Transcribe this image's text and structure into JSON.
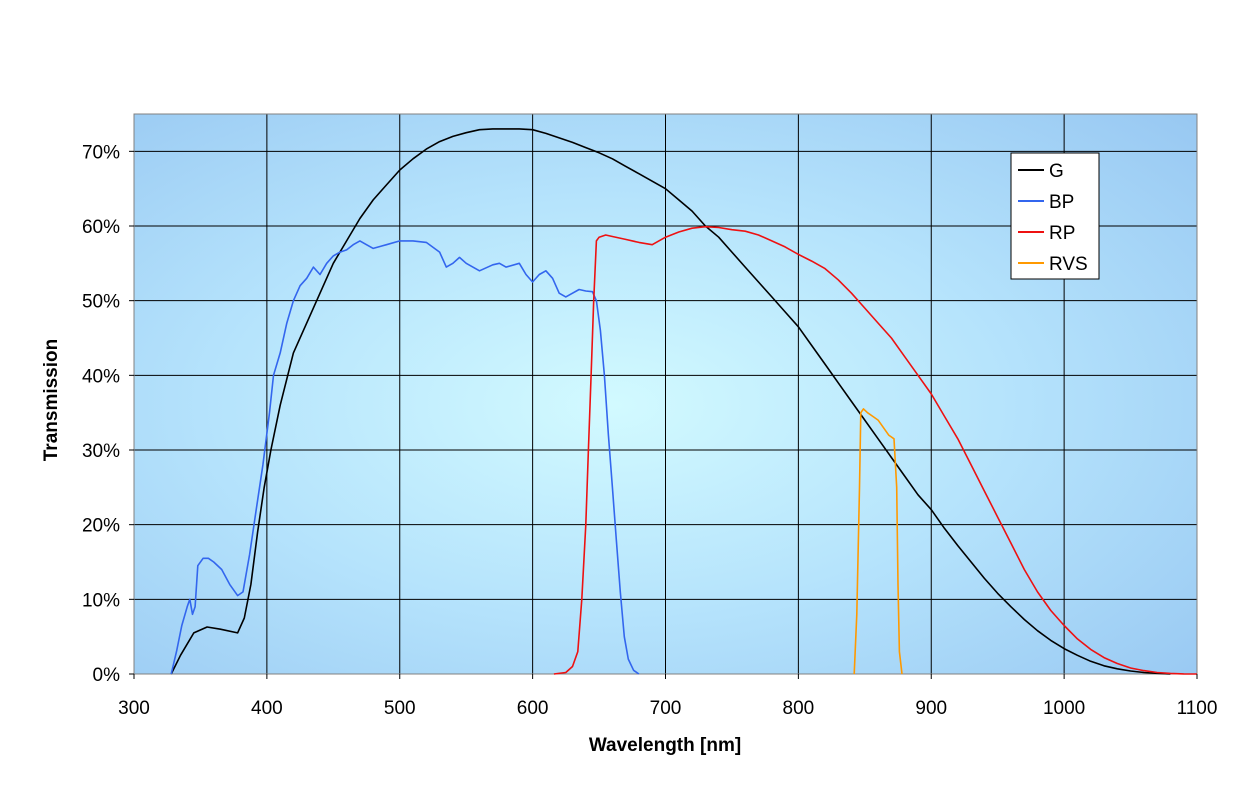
{
  "chart_data": {
    "type": "line",
    "title": "",
    "xlabel": "Wavelength [nm]",
    "ylabel": "Transmission",
    "xlim": [
      300,
      1100
    ],
    "ylim": [
      0,
      75
    ],
    "x_ticks": [
      "300",
      "400",
      "500",
      "600",
      "700",
      "800",
      "900",
      "1000",
      "1100"
    ],
    "y_ticks": [
      "0%",
      "10%",
      "20%",
      "30%",
      "40%",
      "50%",
      "60%",
      "70%"
    ],
    "grid": true,
    "legend_position": "top-right",
    "series": [
      {
        "name": "G",
        "color": "#000000",
        "points": [
          [
            328,
            0
          ],
          [
            335,
            2.5
          ],
          [
            345,
            5.5
          ],
          [
            355,
            6.3
          ],
          [
            365,
            6
          ],
          [
            378,
            5.5
          ],
          [
            383,
            7.5
          ],
          [
            388,
            12
          ],
          [
            393,
            19
          ],
          [
            398,
            25
          ],
          [
            403,
            30
          ],
          [
            410,
            36
          ],
          [
            420,
            43
          ],
          [
            430,
            47
          ],
          [
            440,
            51
          ],
          [
            450,
            55
          ],
          [
            460,
            58
          ],
          [
            470,
            61
          ],
          [
            480,
            63.5
          ],
          [
            490,
            65.5
          ],
          [
            500,
            67.5
          ],
          [
            510,
            69
          ],
          [
            520,
            70.3
          ],
          [
            530,
            71.3
          ],
          [
            540,
            72
          ],
          [
            550,
            72.5
          ],
          [
            560,
            72.9
          ],
          [
            570,
            73
          ],
          [
            580,
            73
          ],
          [
            590,
            73
          ],
          [
            600,
            72.9
          ],
          [
            610,
            72.4
          ],
          [
            620,
            71.8
          ],
          [
            630,
            71.2
          ],
          [
            640,
            70.5
          ],
          [
            650,
            69.8
          ],
          [
            660,
            69
          ],
          [
            670,
            68
          ],
          [
            680,
            67
          ],
          [
            690,
            66
          ],
          [
            700,
            65
          ],
          [
            710,
            63.5
          ],
          [
            720,
            62
          ],
          [
            730,
            60
          ],
          [
            740,
            58.5
          ],
          [
            750,
            56.5
          ],
          [
            760,
            54.5
          ],
          [
            770,
            52.5
          ],
          [
            780,
            50.5
          ],
          [
            790,
            48.5
          ],
          [
            800,
            46.5
          ],
          [
            810,
            44
          ],
          [
            820,
            41.5
          ],
          [
            830,
            39
          ],
          [
            840,
            36.5
          ],
          [
            850,
            34
          ],
          [
            860,
            31.5
          ],
          [
            870,
            29
          ],
          [
            880,
            26.5
          ],
          [
            890,
            24
          ],
          [
            900,
            22
          ],
          [
            910,
            19.5
          ],
          [
            920,
            17.2
          ],
          [
            930,
            15
          ],
          [
            940,
            12.8
          ],
          [
            950,
            10.8
          ],
          [
            960,
            9
          ],
          [
            970,
            7.3
          ],
          [
            980,
            5.8
          ],
          [
            990,
            4.5
          ],
          [
            1000,
            3.4
          ],
          [
            1010,
            2.5
          ],
          [
            1020,
            1.7
          ],
          [
            1030,
            1.1
          ],
          [
            1040,
            0.7
          ],
          [
            1050,
            0.4
          ],
          [
            1060,
            0.2
          ],
          [
            1070,
            0.1
          ],
          [
            1080,
            0
          ]
        ]
      },
      {
        "name": "BP",
        "color": "#3366ee",
        "points": [
          [
            328,
            0
          ],
          [
            332,
            3
          ],
          [
            336,
            6.5
          ],
          [
            340,
            9
          ],
          [
            342,
            10
          ],
          [
            344,
            8
          ],
          [
            346,
            9
          ],
          [
            348,
            14.5
          ],
          [
            352,
            15.5
          ],
          [
            356,
            15.5
          ],
          [
            360,
            15
          ],
          [
            366,
            14
          ],
          [
            372,
            12
          ],
          [
            378,
            10.5
          ],
          [
            382,
            11
          ],
          [
            387,
            16
          ],
          [
            392,
            22
          ],
          [
            397,
            28
          ],
          [
            402,
            35
          ],
          [
            405,
            40
          ],
          [
            410,
            43
          ],
          [
            415,
            47
          ],
          [
            420,
            50
          ],
          [
            425,
            52
          ],
          [
            430,
            53
          ],
          [
            435,
            54.5
          ],
          [
            440,
            53.5
          ],
          [
            445,
            55
          ],
          [
            450,
            56
          ],
          [
            455,
            56.5
          ],
          [
            460,
            56.8
          ],
          [
            465,
            57.5
          ],
          [
            470,
            58
          ],
          [
            475,
            57.5
          ],
          [
            480,
            57
          ],
          [
            490,
            57.5
          ],
          [
            500,
            58
          ],
          [
            510,
            58
          ],
          [
            520,
            57.8
          ],
          [
            530,
            56.5
          ],
          [
            535,
            54.5
          ],
          [
            540,
            55
          ],
          [
            545,
            55.8
          ],
          [
            550,
            55
          ],
          [
            560,
            54
          ],
          [
            570,
            54.8
          ],
          [
            575,
            55
          ],
          [
            580,
            54.5
          ],
          [
            590,
            55
          ],
          [
            595,
            53.5
          ],
          [
            600,
            52.5
          ],
          [
            605,
            53.5
          ],
          [
            610,
            54
          ],
          [
            615,
            53
          ],
          [
            620,
            51
          ],
          [
            625,
            50.5
          ],
          [
            630,
            51
          ],
          [
            635,
            51.5
          ],
          [
            640,
            51.3
          ],
          [
            645,
            51.2
          ],
          [
            648,
            50
          ],
          [
            651,
            46
          ],
          [
            654,
            40
          ],
          [
            657,
            32
          ],
          [
            660,
            25
          ],
          [
            663,
            18
          ],
          [
            666,
            11
          ],
          [
            669,
            5
          ],
          [
            672,
            2
          ],
          [
            676,
            0.5
          ],
          [
            680,
            0
          ]
        ]
      },
      {
        "name": "RP",
        "color": "#ee1111",
        "points": [
          [
            616,
            0
          ],
          [
            625,
            0.2
          ],
          [
            630,
            1
          ],
          [
            634,
            3
          ],
          [
            637,
            10
          ],
          [
            640,
            20
          ],
          [
            642,
            30
          ],
          [
            644,
            40
          ],
          [
            646,
            50
          ],
          [
            648,
            58
          ],
          [
            650,
            58.5
          ],
          [
            655,
            58.8
          ],
          [
            660,
            58.6
          ],
          [
            670,
            58.2
          ],
          [
            680,
            57.8
          ],
          [
            690,
            57.5
          ],
          [
            700,
            58.5
          ],
          [
            710,
            59.2
          ],
          [
            720,
            59.7
          ],
          [
            730,
            59.9
          ],
          [
            740,
            59.8
          ],
          [
            750,
            59.5
          ],
          [
            760,
            59.3
          ],
          [
            770,
            58.8
          ],
          [
            780,
            58
          ],
          [
            790,
            57.2
          ],
          [
            800,
            56.2
          ],
          [
            810,
            55.3
          ],
          [
            820,
            54.3
          ],
          [
            830,
            52.8
          ],
          [
            840,
            51
          ],
          [
            850,
            49
          ],
          [
            860,
            47
          ],
          [
            870,
            45
          ],
          [
            880,
            42.5
          ],
          [
            890,
            40
          ],
          [
            900,
            37.5
          ],
          [
            910,
            34.5
          ],
          [
            920,
            31.5
          ],
          [
            930,
            28
          ],
          [
            940,
            24.5
          ],
          [
            950,
            21
          ],
          [
            960,
            17.5
          ],
          [
            970,
            14
          ],
          [
            980,
            11
          ],
          [
            990,
            8.5
          ],
          [
            1000,
            6.5
          ],
          [
            1010,
            4.7
          ],
          [
            1020,
            3.3
          ],
          [
            1030,
            2.2
          ],
          [
            1040,
            1.4
          ],
          [
            1050,
            0.8
          ],
          [
            1060,
            0.45
          ],
          [
            1070,
            0.2
          ],
          [
            1080,
            0.08
          ],
          [
            1090,
            0.02
          ],
          [
            1100,
            0
          ]
        ]
      },
      {
        "name": "RVS",
        "color": "#ff9900",
        "points": [
          [
            842,
            0
          ],
          [
            844,
            8
          ],
          [
            846,
            25
          ],
          [
            847,
            35
          ],
          [
            849,
            35.5
          ],
          [
            852,
            35
          ],
          [
            856,
            34.5
          ],
          [
            860,
            34
          ],
          [
            864,
            33
          ],
          [
            868,
            32
          ],
          [
            872,
            31.5
          ],
          [
            874,
            25
          ],
          [
            875,
            12
          ],
          [
            876,
            3
          ],
          [
            878,
            0
          ]
        ]
      }
    ]
  }
}
